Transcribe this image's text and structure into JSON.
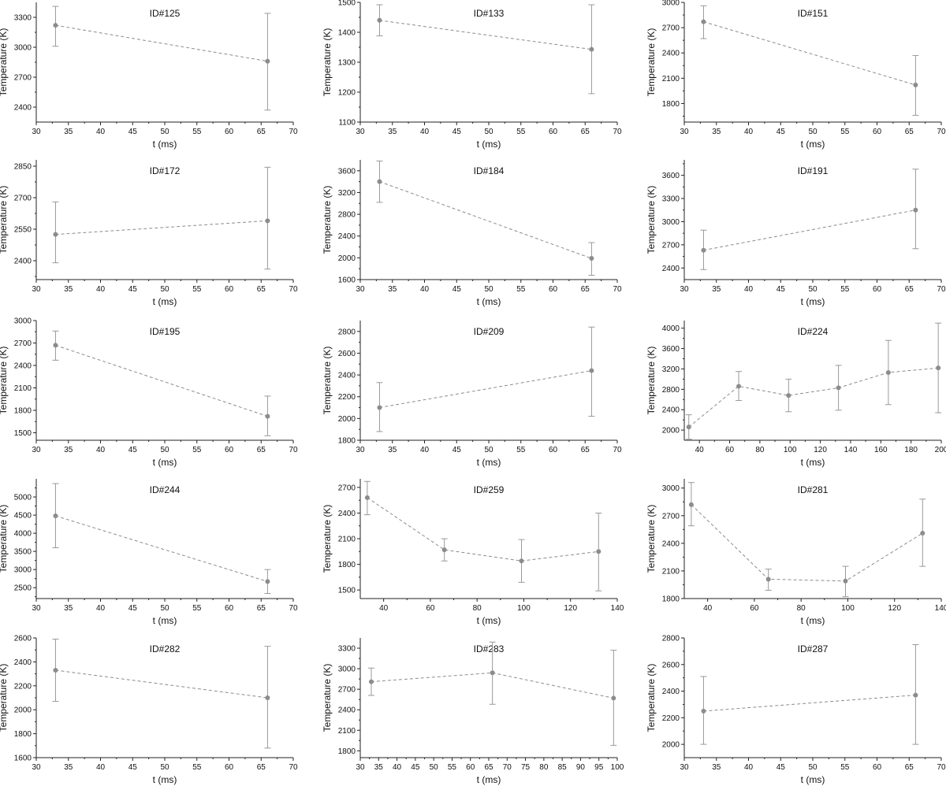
{
  "colors": {
    "series": "#8c8c8c",
    "axis": "#222222",
    "error": "#999999"
  },
  "chart_data": [
    {
      "type": "line",
      "title": "ID#125",
      "xlabel": "t (ms)",
      "ylabel": "Temperature (K)",
      "xlim": [
        30,
        70
      ],
      "ylim": [
        2250,
        3450
      ],
      "xticks": [
        30,
        35,
        40,
        45,
        50,
        55,
        60,
        65,
        70
      ],
      "yticks": [
        2400,
        2700,
        3000,
        3300
      ],
      "x": [
        33,
        66
      ],
      "y": [
        3220,
        2860
      ],
      "yerr_low": [
        3010,
        2370
      ],
      "yerr_high": [
        3410,
        3340
      ]
    },
    {
      "type": "line",
      "title": "ID#133",
      "xlabel": "t (ms)",
      "ylabel": "Temperature (K)",
      "xlim": [
        30,
        70
      ],
      "ylim": [
        1100,
        1500
      ],
      "xticks": [
        30,
        35,
        40,
        45,
        50,
        55,
        60,
        65,
        70
      ],
      "yticks": [
        1100,
        1200,
        1300,
        1400,
        1500
      ],
      "x": [
        33,
        66
      ],
      "y": [
        1440,
        1343
      ],
      "yerr_low": [
        1388,
        1195
      ],
      "yerr_high": [
        1492,
        1492
      ]
    },
    {
      "type": "line",
      "title": "ID#151",
      "xlabel": "t (ms)",
      "ylabel": "Temperature (K)",
      "xlim": [
        30,
        70
      ],
      "ylim": [
        1580,
        3000
      ],
      "xticks": [
        30,
        35,
        40,
        45,
        50,
        55,
        60,
        65,
        70
      ],
      "yticks": [
        1800,
        2100,
        2400,
        2700,
        3000
      ],
      "x": [
        33,
        66
      ],
      "y": [
        2770,
        2020
      ],
      "yerr_low": [
        2570,
        1660
      ],
      "yerr_high": [
        2960,
        2370
      ]
    },
    {
      "type": "line",
      "title": "ID#172",
      "xlabel": "t (ms)",
      "ylabel": "Temperature (K)",
      "xlim": [
        30,
        70
      ],
      "ylim": [
        2310,
        2880
      ],
      "xticks": [
        30,
        35,
        40,
        45,
        50,
        55,
        60,
        65,
        70
      ],
      "yticks": [
        2400,
        2550,
        2700,
        2850
      ],
      "x": [
        33,
        66
      ],
      "y": [
        2525,
        2590
      ],
      "yerr_low": [
        2390,
        2360
      ],
      "yerr_high": [
        2680,
        2845
      ]
    },
    {
      "type": "line",
      "title": "ID#184",
      "xlabel": "t (ms)",
      "ylabel": "Temperature (K)",
      "xlim": [
        30,
        70
      ],
      "ylim": [
        1600,
        3800
      ],
      "xticks": [
        30,
        35,
        40,
        45,
        50,
        55,
        60,
        65,
        70
      ],
      "yticks": [
        1600,
        2000,
        2400,
        2800,
        3200,
        3600
      ],
      "x": [
        33,
        66
      ],
      "y": [
        3400,
        1990
      ],
      "yerr_low": [
        3020,
        1680
      ],
      "yerr_high": [
        3780,
        2280
      ]
    },
    {
      "type": "line",
      "title": "ID#191",
      "xlabel": "t (ms)",
      "ylabel": "Temperature (K)",
      "xlim": [
        30,
        70
      ],
      "ylim": [
        2250,
        3800
      ],
      "xticks": [
        30,
        35,
        40,
        45,
        50,
        55,
        60,
        65,
        70
      ],
      "yticks": [
        2400,
        2700,
        3000,
        3300,
        3600
      ],
      "x": [
        33,
        66
      ],
      "y": [
        2630,
        3150
      ],
      "yerr_low": [
        2380,
        2650
      ],
      "yerr_high": [
        2890,
        3680
      ]
    },
    {
      "type": "line",
      "title": "ID#195",
      "xlabel": "t (ms)",
      "ylabel": "Temperature (K)",
      "xlim": [
        30,
        70
      ],
      "ylim": [
        1400,
        3000
      ],
      "xticks": [
        30,
        35,
        40,
        45,
        50,
        55,
        60,
        65,
        70
      ],
      "yticks": [
        1500,
        1800,
        2100,
        2400,
        2700,
        3000
      ],
      "x": [
        33,
        66
      ],
      "y": [
        2670,
        1720
      ],
      "yerr_low": [
        2470,
        1460
      ],
      "yerr_high": [
        2860,
        1990
      ]
    },
    {
      "type": "line",
      "title": "ID#209",
      "xlabel": "t (ms)",
      "ylabel": "Temperature (K)",
      "xlim": [
        30,
        70
      ],
      "ylim": [
        1800,
        2900
      ],
      "xticks": [
        30,
        35,
        40,
        45,
        50,
        55,
        60,
        65,
        70
      ],
      "yticks": [
        1800,
        2000,
        2200,
        2400,
        2600,
        2800
      ],
      "x": [
        33,
        66
      ],
      "y": [
        2100,
        2440
      ],
      "yerr_low": [
        1880,
        2020
      ],
      "yerr_high": [
        2330,
        2840
      ]
    },
    {
      "type": "line",
      "title": "ID#224",
      "xlabel": "t (ms)",
      "ylabel": "Temperature (K)",
      "xlim": [
        30,
        200
      ],
      "ylim": [
        1800,
        4150
      ],
      "xticks": [
        40,
        60,
        80,
        100,
        120,
        140,
        160,
        180,
        200
      ],
      "yticks": [
        2000,
        2400,
        2800,
        3200,
        3600,
        4000
      ],
      "x": [
        33,
        66,
        99,
        132,
        165,
        198
      ],
      "y": [
        2060,
        2860,
        2680,
        2830,
        3130,
        3220
      ],
      "yerr_low": [
        1820,
        2580,
        2360,
        2390,
        2500,
        2340
      ],
      "yerr_high": [
        2300,
        3150,
        3000,
        3270,
        3760,
        4100
      ]
    },
    {
      "type": "line",
      "title": "ID#244",
      "xlabel": "t (ms)",
      "ylabel": "Temperature (K)",
      "xlim": [
        30,
        70
      ],
      "ylim": [
        2200,
        5500
      ],
      "xticks": [
        30,
        35,
        40,
        45,
        50,
        55,
        60,
        65,
        70
      ],
      "yticks": [
        2500,
        3000,
        3500,
        4000,
        4500,
        5000
      ],
      "x": [
        33,
        66
      ],
      "y": [
        4480,
        2670
      ],
      "yerr_low": [
        3600,
        2340
      ],
      "yerr_high": [
        5370,
        3000
      ]
    },
    {
      "type": "line",
      "title": "ID#259",
      "xlabel": "t (ms)",
      "ylabel": "Temperature (K)",
      "xlim": [
        30,
        140
      ],
      "ylim": [
        1400,
        2800
      ],
      "xticks": [
        40,
        60,
        80,
        100,
        120,
        140
      ],
      "yticks": [
        1500,
        1800,
        2100,
        2400,
        2700
      ],
      "x": [
        33,
        66,
        99,
        132
      ],
      "y": [
        2580,
        1970,
        1840,
        1950
      ],
      "yerr_low": [
        2380,
        1840,
        1590,
        1490
      ],
      "yerr_high": [
        2770,
        2100,
        2090,
        2400
      ]
    },
    {
      "type": "line",
      "title": "ID#281",
      "xlabel": "t (ms)",
      "ylabel": "Temperature (K)",
      "xlim": [
        30,
        140
      ],
      "ylim": [
        1800,
        3100
      ],
      "xticks": [
        40,
        60,
        80,
        100,
        120,
        140
      ],
      "yticks": [
        1800,
        2100,
        2400,
        2700,
        3000
      ],
      "x": [
        33,
        66,
        99,
        132
      ],
      "y": [
        2820,
        2010,
        1990,
        2510
      ],
      "yerr_low": [
        2590,
        1890,
        1820,
        2150
      ],
      "yerr_high": [
        3060,
        2120,
        2150,
        2880
      ]
    },
    {
      "type": "line",
      "title": "ID#282",
      "xlabel": "t (ms)",
      "ylabel": "Temperature (K)",
      "xlim": [
        30,
        70
      ],
      "ylim": [
        1600,
        2600
      ],
      "xticks": [
        30,
        35,
        40,
        45,
        50,
        55,
        60,
        65,
        70
      ],
      "yticks": [
        1600,
        1800,
        2000,
        2200,
        2400,
        2600
      ],
      "x": [
        33,
        66
      ],
      "y": [
        2330,
        2100
      ],
      "yerr_low": [
        2070,
        1680
      ],
      "yerr_high": [
        2590,
        2530
      ]
    },
    {
      "type": "line",
      "title": "ID#283",
      "xlabel": "t (ms)",
      "ylabel": "Temperature (K)",
      "xlim": [
        30,
        100
      ],
      "ylim": [
        1700,
        3450
      ],
      "xticks": [
        30,
        35,
        40,
        45,
        50,
        55,
        60,
        65,
        70,
        75,
        80,
        85,
        90,
        95,
        100
      ],
      "yticks": [
        1800,
        2100,
        2400,
        2700,
        3000,
        3300
      ],
      "x": [
        33,
        66,
        99
      ],
      "y": [
        2810,
        2940,
        2570
      ],
      "yerr_low": [
        2610,
        2480,
        1880
      ],
      "yerr_high": [
        3010,
        3390,
        3270
      ]
    },
    {
      "type": "line",
      "title": "ID#287",
      "xlabel": "t (ms)",
      "ylabel": "Temperature (K)",
      "xlim": [
        30,
        70
      ],
      "ylim": [
        1900,
        2800
      ],
      "xticks": [
        30,
        35,
        40,
        45,
        50,
        55,
        60,
        65,
        70
      ],
      "yticks": [
        2000,
        2200,
        2400,
        2600,
        2800
      ],
      "x": [
        33,
        66
      ],
      "y": [
        2250,
        2370
      ],
      "yerr_low": [
        2000,
        2000
      ],
      "yerr_high": [
        2510,
        2750
      ]
    }
  ]
}
